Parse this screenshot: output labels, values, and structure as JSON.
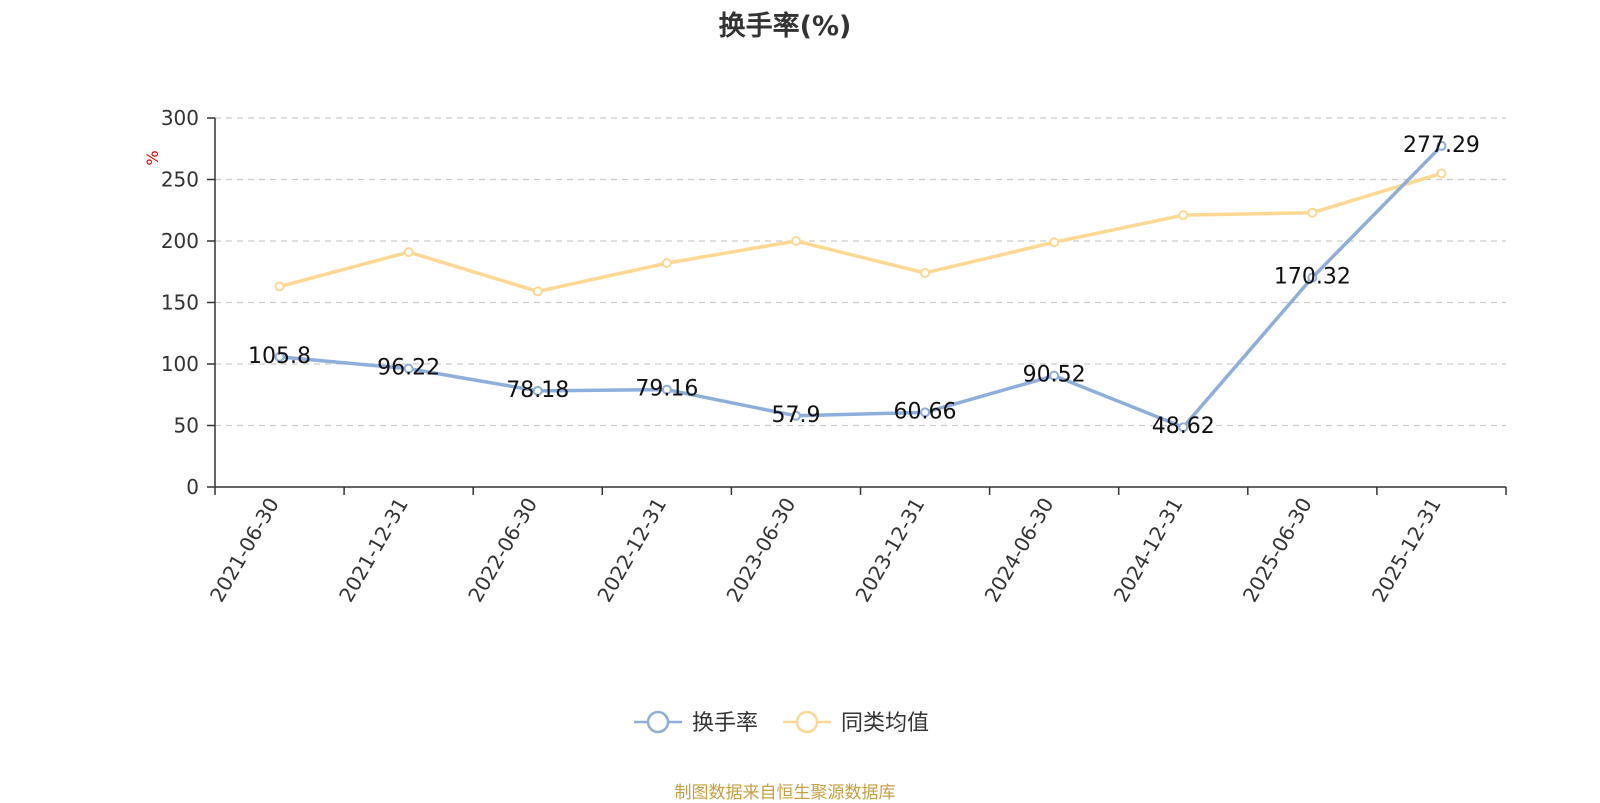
{
  "chart_data": {
    "type": "line",
    "title": "换手率(%)",
    "ylabel": "%",
    "xlabel": "",
    "ylim": [
      0,
      300
    ],
    "yticks": [
      0,
      50,
      100,
      150,
      200,
      250,
      300
    ],
    "grid": true,
    "legend_position": "bottom",
    "categories": [
      "2021-06-30",
      "2021-12-31",
      "2022-06-30",
      "2022-12-31",
      "2023-06-30",
      "2023-12-31",
      "2024-06-30",
      "2024-12-31",
      "2025-06-30",
      "2025-12-31"
    ],
    "series": [
      {
        "name": "换手率",
        "color": "#8eaedb",
        "values": [
          105.8,
          96.22,
          78.18,
          79.16,
          57.9,
          60.66,
          90.52,
          48.62,
          170.32,
          277.29
        ],
        "labels": [
          "105.8",
          "96.22",
          "78.18",
          "79.16",
          "57.9",
          "60.66",
          "90.52",
          "48.62",
          "170.32",
          "277.29"
        ]
      },
      {
        "name": "同类均值",
        "color": "#fdd893",
        "values": [
          163,
          191,
          159,
          182,
          200,
          174,
          199,
          221,
          223,
          255
        ]
      }
    ]
  },
  "source_text": "制图数据来自恒生聚源数据库",
  "source_color": "#c8a040"
}
